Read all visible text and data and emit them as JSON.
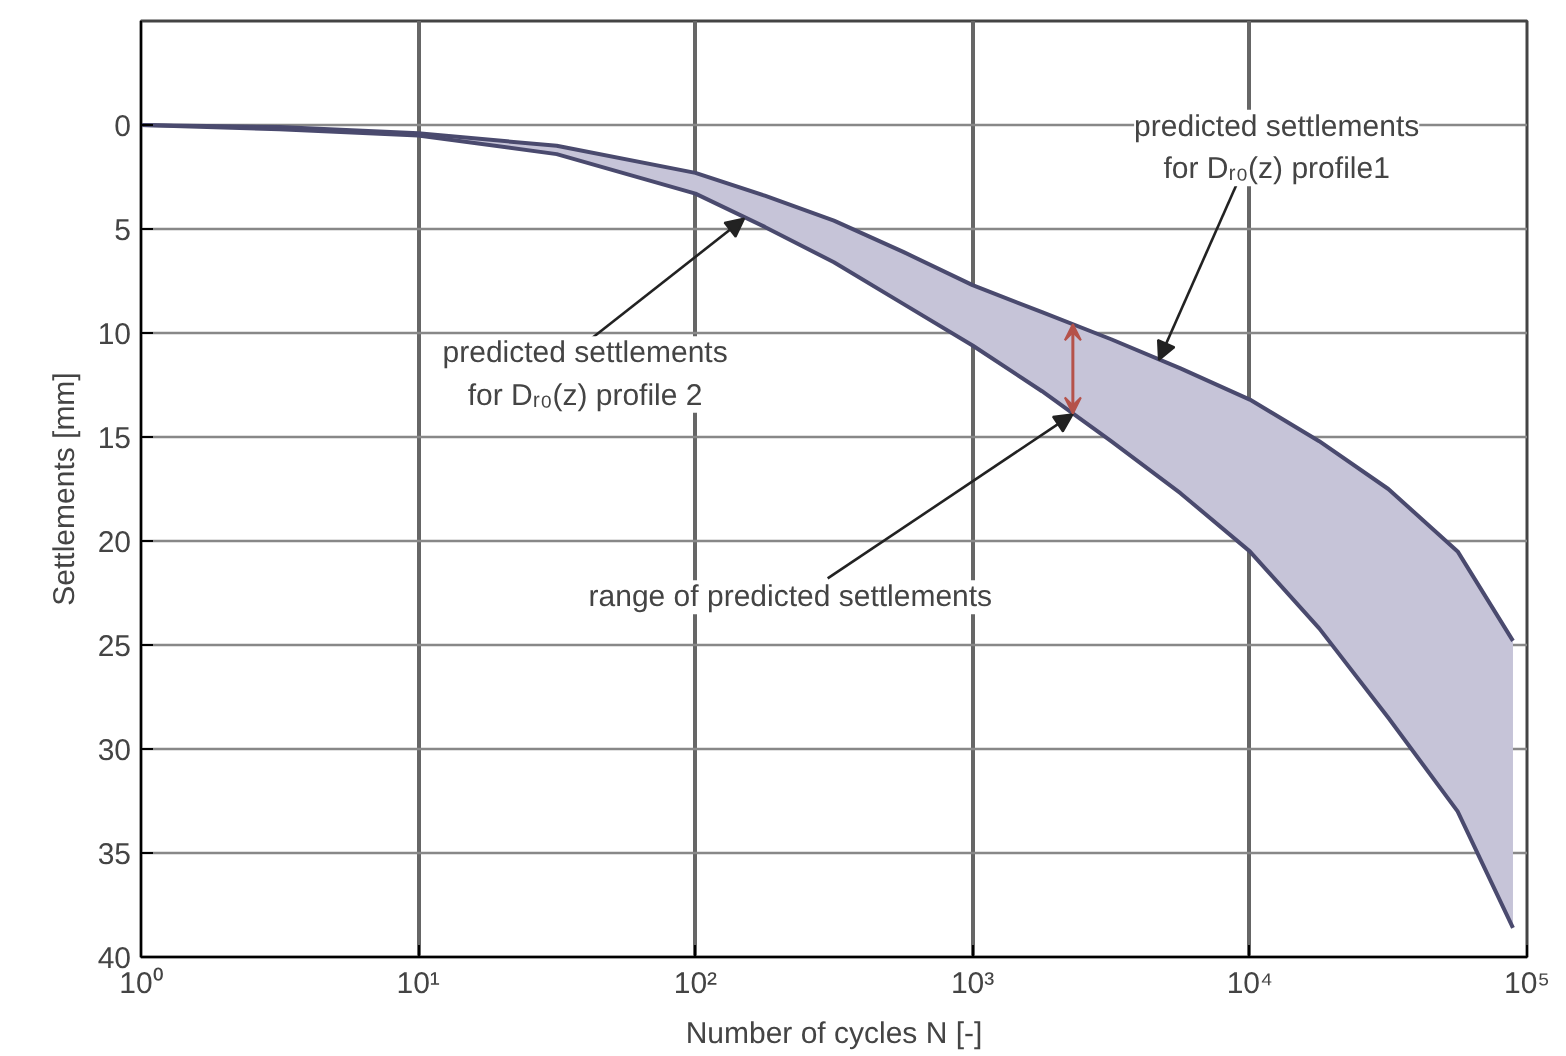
{
  "chart_data": {
    "type": "line",
    "xlabel": "Number of cycles N [-]",
    "ylabel": "Settlements [mm]",
    "log": "x",
    "xlim": [
      1,
      100000
    ],
    "ylim": [
      40,
      -5
    ],
    "xticks": [
      {
        "value": 1,
        "label": "10⁰"
      },
      {
        "value": 10,
        "label": "10¹"
      },
      {
        "value": 100,
        "label": "10²"
      },
      {
        "value": 1000,
        "label": "10³"
      },
      {
        "value": 10000,
        "label": "10⁴"
      },
      {
        "value": 100000,
        "label": "10⁵"
      }
    ],
    "yticks": [
      0,
      5,
      10,
      15,
      20,
      25,
      30,
      35,
      40
    ],
    "grid": true,
    "marker": "none",
    "line_style": "solid",
    "series": [
      {
        "color": "#4a4a6e",
        "x": [
          1,
          3.16,
          10,
          31.6,
          100,
          178,
          316,
          562,
          1000,
          1780,
          3160,
          5620,
          10000,
          17800,
          31600,
          56200,
          89000
        ],
        "values": [
          0,
          0.1,
          0.4,
          1.0,
          2.3,
          3.4,
          4.6,
          6.1,
          7.7,
          9.0,
          10.3,
          11.7,
          13.2,
          15.2,
          17.5,
          20.5,
          24.8
        ]
      },
      {
        "color": "#4a4a6e",
        "x": [
          1,
          3.16,
          10,
          31.6,
          100,
          178,
          316,
          562,
          1000,
          1780,
          3160,
          5620,
          10000,
          17800,
          31600,
          56200,
          89000
        ],
        "values": [
          0,
          0.2,
          0.5,
          1.4,
          3.3,
          4.9,
          6.6,
          8.6,
          10.6,
          12.8,
          15.2,
          17.7,
          20.5,
          24.2,
          28.5,
          33.0,
          38.6
        ],
        "lower": [
          0,
          0.1,
          0.4,
          1.0,
          2.3,
          3.4,
          4.6,
          6.1,
          7.7,
          9.0,
          10.3,
          11.7,
          13.2,
          15.2,
          17.5,
          20.5,
          24.8
        ],
        "upper": [
          0,
          0.2,
          0.5,
          1.4,
          3.3,
          4.9,
          6.6,
          8.6,
          10.6,
          12.8,
          15.2,
          17.7,
          20.5,
          24.2,
          28.5,
          33.0,
          38.6
        ]
      }
    ],
    "annotations": [
      {
        "text": "predicted settlements\nfor Dᵣ₀(z) profile 2",
        "x": 150,
        "y": 4.5
      },
      {
        "text": "predicted settlements\nfor Dᵣ₀(z) profile1",
        "x": 4700,
        "y": 11.3
      },
      {
        "text": "range of predicted settlements",
        "x": 2300,
        "y": 13.9
      }
    ]
  }
}
